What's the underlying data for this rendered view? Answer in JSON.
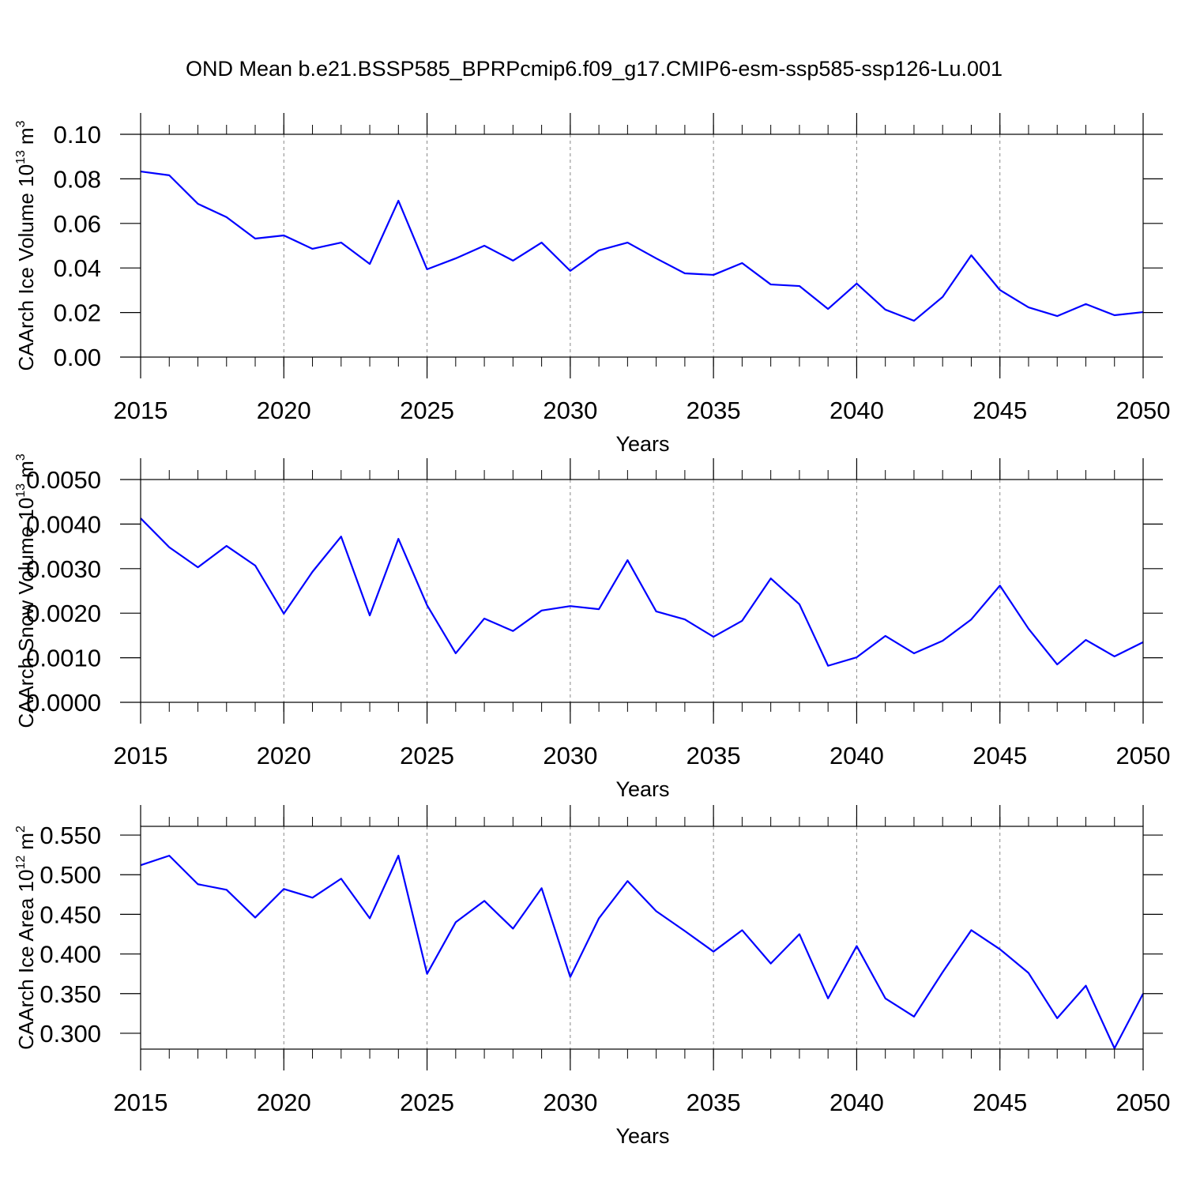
{
  "title": "OND Mean b.e21.BSSP585_BPRPcmip6.f09_g17.CMIP6-esm-ssp585-ssp126-Lu.001",
  "chart_data": [
    {
      "type": "line",
      "xlabel": "Years",
      "ylabel": {
        "text": "CAArch Ice Volume 10",
        "exp": "13",
        "unit": "m",
        "unit_exp": "3"
      },
      "x": [
        2015,
        2016,
        2017,
        2018,
        2019,
        2020,
        2021,
        2022,
        2023,
        2024,
        2025,
        2026,
        2027,
        2028,
        2029,
        2030,
        2031,
        2032,
        2033,
        2034,
        2035,
        2036,
        2037,
        2038,
        2039,
        2040,
        2041,
        2042,
        2043,
        2044,
        2045,
        2046,
        2047,
        2048,
        2049,
        2050
      ],
      "series": [
        {
          "color": "#0000ff",
          "values": [
            0.0833,
            0.0816,
            0.0688,
            0.0628,
            0.0532,
            0.0546,
            0.0486,
            0.0514,
            0.0418,
            0.0702,
            0.0394,
            0.0443,
            0.05,
            0.0433,
            0.0514,
            0.0387,
            0.0479,
            0.0514,
            0.0443,
            0.0376,
            0.0369,
            0.0422,
            0.0326,
            0.0319,
            0.0216,
            0.033,
            0.0213,
            0.0163,
            0.027,
            0.0457,
            0.0301,
            0.0223,
            0.0184,
            0.0238,
            0.0188,
            0.0202
          ]
        }
      ],
      "xlim": [
        2015,
        2050
      ],
      "xticks": [
        2015,
        2020,
        2025,
        2030,
        2035,
        2040,
        2045,
        2050
      ],
      "ylim": [
        0,
        0.1
      ],
      "yticks": [
        {
          "value": 0,
          "label": "0.00"
        },
        {
          "value": 0.02,
          "label": "0.02"
        },
        {
          "value": 0.04,
          "label": "0.04"
        },
        {
          "value": 0.06,
          "label": "0.06"
        },
        {
          "value": 0.08,
          "label": "0.08"
        },
        {
          "value": 0.1,
          "label": "0.10"
        }
      ],
      "grid": "x-dashed"
    },
    {
      "type": "line",
      "xlabel": "Years",
      "ylabel": {
        "text": "CAArch Snow Volume 10",
        "exp": "13",
        "unit": "m",
        "unit_exp": "3"
      },
      "x": [
        2015,
        2016,
        2017,
        2018,
        2019,
        2020,
        2021,
        2022,
        2023,
        2024,
        2025,
        2026,
        2027,
        2028,
        2029,
        2030,
        2031,
        2032,
        2033,
        2034,
        2035,
        2036,
        2037,
        2038,
        2039,
        2040,
        2041,
        2042,
        2043,
        2044,
        2045,
        2046,
        2047,
        2048,
        2049,
        2050
      ],
      "series": [
        {
          "color": "#0000ff",
          "values": [
            0.00413,
            0.00348,
            0.00303,
            0.00351,
            0.00307,
            0.00199,
            0.00293,
            0.00372,
            0.00195,
            0.00367,
            0.00218,
            0.0011,
            0.00188,
            0.0016,
            0.00206,
            0.00216,
            0.00209,
            0.00319,
            0.00204,
            0.00186,
            0.00147,
            0.00183,
            0.00278,
            0.0022,
            0.00082,
            0.00101,
            0.00149,
            0.0011,
            0.00138,
            0.00186,
            0.00262,
            0.00165,
            0.00085,
            0.0014,
            0.00103,
            0.00135
          ]
        }
      ],
      "xlim": [
        2015,
        2050
      ],
      "xticks": [
        2015,
        2020,
        2025,
        2030,
        2035,
        2040,
        2045,
        2050
      ],
      "ylim": [
        0,
        0.005
      ],
      "yticks": [
        {
          "value": 0,
          "label": "0.0000"
        },
        {
          "value": 0.001,
          "label": "0.0010"
        },
        {
          "value": 0.002,
          "label": "0.0020"
        },
        {
          "value": 0.003,
          "label": "0.0030"
        },
        {
          "value": 0.004,
          "label": "0.0040"
        },
        {
          "value": 0.005,
          "label": "0.0050"
        }
      ],
      "grid": "x-dashed"
    },
    {
      "type": "line",
      "xlabel": "Years",
      "ylabel": {
        "text": "CAArch Ice Area 10",
        "exp": "12",
        "unit": "m",
        "unit_exp": "2"
      },
      "x": [
        2015,
        2016,
        2017,
        2018,
        2019,
        2020,
        2021,
        2022,
        2023,
        2024,
        2025,
        2026,
        2027,
        2028,
        2029,
        2030,
        2031,
        2032,
        2033,
        2034,
        2035,
        2036,
        2037,
        2038,
        2039,
        2040,
        2041,
        2042,
        2043,
        2044,
        2045,
        2046,
        2047,
        2048,
        2049,
        2050
      ],
      "series": [
        {
          "color": "#0000ff",
          "values": [
            0.512,
            0.524,
            0.488,
            0.481,
            0.446,
            0.482,
            0.471,
            0.495,
            0.445,
            0.524,
            0.375,
            0.44,
            0.467,
            0.432,
            0.483,
            0.371,
            0.445,
            0.492,
            0.454,
            0.429,
            0.403,
            0.43,
            0.388,
            0.425,
            0.344,
            0.41,
            0.344,
            0.321,
            0.377,
            0.43,
            0.406,
            0.376,
            0.319,
            0.36,
            0.281,
            0.35
          ]
        }
      ],
      "xlim": [
        2015,
        2050
      ],
      "xticks": [
        2015,
        2020,
        2025,
        2030,
        2035,
        2040,
        2045,
        2050
      ],
      "ylim": [
        0.28,
        0.561
      ],
      "yticks": [
        {
          "value": 0.3,
          "label": "0.300"
        },
        {
          "value": 0.35,
          "label": "0.350"
        },
        {
          "value": 0.4,
          "label": "0.400"
        },
        {
          "value": 0.45,
          "label": "0.450"
        },
        {
          "value": 0.5,
          "label": "0.500"
        },
        {
          "value": 0.55,
          "label": "0.550"
        }
      ],
      "grid": "x-dashed"
    }
  ]
}
